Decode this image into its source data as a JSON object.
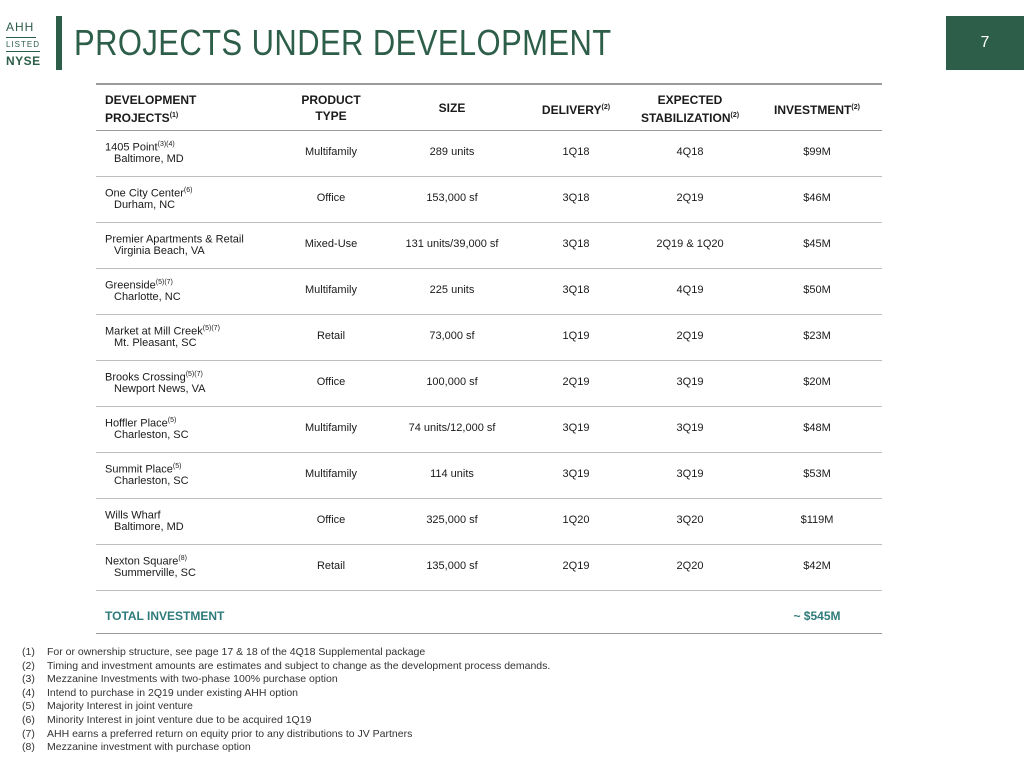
{
  "logo": {
    "line1": "AHH",
    "line2": "LISTED",
    "line3": "NYSE"
  },
  "title": "PROJECTS UNDER DEVELOPMENT",
  "page_number": "7",
  "header": {
    "project_line1": "DEVELOPMENT",
    "project_line2": "PROJECTS",
    "project_sup": "(1)",
    "type_line1": "PRODUCT",
    "type_line2": "TYPE",
    "size": "SIZE",
    "delivery": "DELIVERY",
    "delivery_sup": "(2)",
    "stab_line1": "EXPECTED",
    "stab_line2": "STABILIZATION",
    "stab_sup": "(2)",
    "investment": "INVESTMENT",
    "investment_sup": "(2)"
  },
  "rows": [
    {
      "name": "1405 Point",
      "sup": "(3)(4)",
      "location": "Baltimore, MD",
      "type": "Multifamily",
      "size": "289 units",
      "delivery": "1Q18",
      "stabilization": "4Q18",
      "investment": "$99M"
    },
    {
      "name": "One City Center",
      "sup": "(6)",
      "location": "Durham, NC",
      "type": "Office",
      "size": "153,000 sf",
      "delivery": "3Q18",
      "stabilization": "2Q19",
      "investment": "$46M"
    },
    {
      "name": "Premier Apartments & Retail",
      "sup": "",
      "location": "Virginia Beach, VA",
      "type": "Mixed-Use",
      "size": "131 units/39,000 sf",
      "delivery": "3Q18",
      "stabilization": "2Q19 & 1Q20",
      "investment": "$45M"
    },
    {
      "name": "Greenside",
      "sup": "(5)(7)",
      "location": "Charlotte, NC",
      "type": "Multifamily",
      "size": "225 units",
      "delivery": "3Q18",
      "stabilization": "4Q19",
      "investment": "$50M"
    },
    {
      "name": "Market at Mill Creek",
      "sup": "(5)(7)",
      "location": "Mt. Pleasant, SC",
      "type": "Retail",
      "size": "73,000 sf",
      "delivery": "1Q19",
      "stabilization": "2Q19",
      "investment": "$23M"
    },
    {
      "name": "Brooks Crossing",
      "sup": "(5)(7)",
      "location": "Newport News, VA",
      "type": "Office",
      "size": "100,000 sf",
      "delivery": "2Q19",
      "stabilization": "3Q19",
      "investment": "$20M"
    },
    {
      "name": "Hoffler Place",
      "sup": "(5)",
      "location": "Charleston, SC",
      "type": "Multifamily",
      "size": "74 units/12,000 sf",
      "delivery": "3Q19",
      "stabilization": "3Q19",
      "investment": "$48M"
    },
    {
      "name": "Summit Place",
      "sup": "(5)",
      "location": "Charleston, SC",
      "type": "Multifamily",
      "size": "114 units",
      "delivery": "3Q19",
      "stabilization": "3Q19",
      "investment": "$53M"
    },
    {
      "name": "Wills Wharf",
      "sup": "",
      "location": "Baltimore, MD",
      "type": "Office",
      "size": "325,000 sf",
      "delivery": "1Q20",
      "stabilization": "3Q20",
      "investment": "$119M"
    },
    {
      "name": "Nexton Square",
      "sup": "(8)",
      "location": "Summerville, SC",
      "type": "Retail",
      "size": "135,000 sf",
      "delivery": "2Q19",
      "stabilization": "2Q20",
      "investment": "$42M"
    }
  ],
  "total": {
    "label": "TOTAL INVESTMENT",
    "value": "~ $545M"
  },
  "footnotes": [
    {
      "num": "(1)",
      "text": "For or ownership structure, see page 17 & 18 of the 4Q18 Supplemental package"
    },
    {
      "num": "(2)",
      "text": "Timing and investment amounts are estimates and subject to change as the development process demands."
    },
    {
      "num": "(3)",
      "text": "Mezzanine Investments with two-phase 100% purchase option"
    },
    {
      "num": "(4)",
      "text": "Intend to purchase in 2Q19 under existing AHH option"
    },
    {
      "num": "(5)",
      "text": "Majority Interest in joint venture"
    },
    {
      "num": "(6)",
      "text": "Minority Interest in joint venture due to be acquired 1Q19"
    },
    {
      "num": "(7)",
      "text": "AHH earns a preferred return on equity prior to any distributions to JV Partners"
    },
    {
      "num": "(8)",
      "text": "Mezzanine investment with purchase option"
    }
  ]
}
